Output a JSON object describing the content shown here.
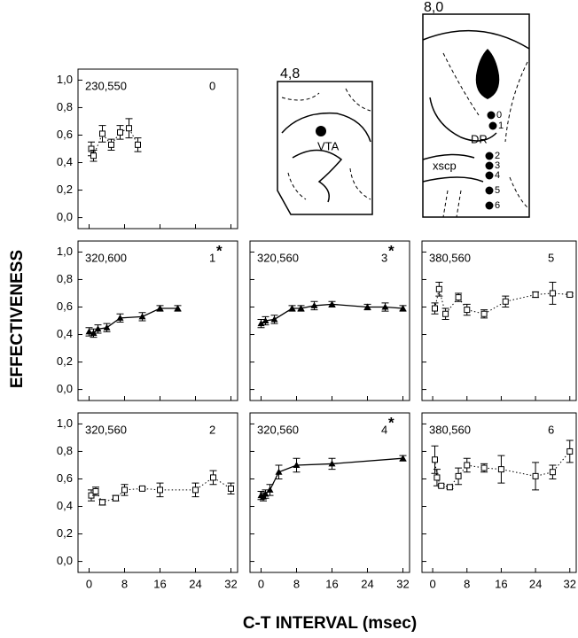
{
  "chart_data": [
    {
      "type": "scatter",
      "title": "230,550",
      "panel_label": "0",
      "x": [
        0.5,
        1,
        3,
        5,
        7,
        9,
        11
      ],
      "series": [
        {
          "color": "#000000",
          "marker": "square",
          "line": "dotted",
          "values": [
            0.5,
            0.45,
            0.61,
            0.53,
            0.62,
            0.65,
            0.53
          ],
          "errors": [
            0.05,
            0.04,
            0.06,
            0.04,
            0.05,
            0.07,
            0.05
          ]
        }
      ],
      "xlim": [
        -2.5,
        33.5
      ],
      "xticks": [
        0,
        8,
        16,
        24,
        32
      ],
      "xtick_labels": false,
      "ylim": [
        -0.08,
        1.08
      ],
      "yticks": [
        {
          "value": 0,
          "label": "0,0"
        },
        {
          "value": 0.2,
          "label": "0,2"
        },
        {
          "value": 0.4,
          "label": "0,4"
        },
        {
          "value": 0.6,
          "label": "0,6"
        },
        {
          "value": 0.8,
          "label": "0,8"
        },
        {
          "value": 1,
          "label": "1,0"
        }
      ],
      "ytick_labels": true
    },
    {
      "type": "scatter",
      "title": "320,600",
      "panel_label": "1",
      "significance": "*",
      "ylabel": "EFFECTIVENESS",
      "x": [
        0,
        1,
        2,
        4,
        7,
        12,
        16,
        20
      ],
      "series": [
        {
          "color": "#000000",
          "marker": "triangle",
          "line": "solid",
          "values": [
            0.42,
            0.41,
            0.44,
            0.45,
            0.52,
            0.53,
            0.59,
            0.59
          ],
          "errors": [
            0.03,
            0.03,
            0.03,
            0.03,
            0.03,
            0.03,
            0.02,
            0.02
          ]
        }
      ],
      "xlim": [
        -2.5,
        33.5
      ],
      "xticks": [
        0,
        8,
        16,
        24,
        32
      ],
      "xtick_labels": false,
      "ylim": [
        -0.08,
        1.08
      ],
      "yticks": [
        {
          "value": 0,
          "label": "0,0"
        },
        {
          "value": 0.2,
          "label": "0,2"
        },
        {
          "value": 0.4,
          "label": "0,4"
        },
        {
          "value": 0.6,
          "label": "0,6"
        },
        {
          "value": 0.8,
          "label": "0,8"
        },
        {
          "value": 1,
          "label": "1,0"
        }
      ],
      "ytick_labels": true
    },
    {
      "type": "scatter",
      "title": "320,560",
      "panel_label": "3",
      "significance": "*",
      "x": [
        0,
        1,
        3,
        7,
        9,
        12,
        16,
        24,
        28,
        32
      ],
      "series": [
        {
          "color": "#000000",
          "marker": "triangle",
          "line": "solid",
          "values": [
            0.48,
            0.5,
            0.51,
            0.59,
            0.59,
            0.61,
            0.62,
            0.6,
            0.6,
            0.59
          ],
          "errors": [
            0.03,
            0.03,
            0.03,
            0.02,
            0.02,
            0.03,
            0.02,
            0.02,
            0.03,
            0.02
          ]
        }
      ],
      "xlim": [
        -2.5,
        33.5
      ],
      "xticks": [
        0,
        8,
        16,
        24,
        32
      ],
      "xtick_labels": false,
      "ylim": [
        -0.08,
        1.08
      ],
      "yticks": [
        0,
        0.2,
        0.4,
        0.6,
        0.8,
        1
      ],
      "ytick_labels": false
    },
    {
      "type": "scatter",
      "title": "380,560",
      "panel_label": "5",
      "x": [
        0.5,
        1.5,
        3,
        6,
        8,
        12,
        17,
        24,
        28,
        32
      ],
      "series": [
        {
          "color": "#000000",
          "marker": "square",
          "line": "dotted",
          "values": [
            0.59,
            0.73,
            0.55,
            0.67,
            0.58,
            0.55,
            0.64,
            0.69,
            0.7,
            0.69
          ],
          "errors": [
            0.04,
            0.05,
            0.04,
            0.03,
            0.04,
            0.03,
            0.04,
            0.02,
            0.08,
            0.01
          ]
        }
      ],
      "xlim": [
        -2.5,
        33.5
      ],
      "xticks": [
        0,
        8,
        16,
        24,
        32
      ],
      "xtick_labels": false,
      "ylim": [
        -0.08,
        1.08
      ],
      "yticks": [
        0,
        0.2,
        0.4,
        0.6,
        0.8,
        1
      ],
      "ytick_labels": false
    },
    {
      "type": "scatter",
      "title": "320,560",
      "panel_label": "2",
      "x": [
        0.5,
        1.5,
        3,
        6,
        8,
        12,
        16,
        24,
        28,
        32
      ],
      "series": [
        {
          "color": "#000000",
          "marker": "square",
          "line": "dotted",
          "values": [
            0.48,
            0.51,
            0.43,
            0.46,
            0.52,
            0.53,
            0.52,
            0.52,
            0.61,
            0.53
          ],
          "errors": [
            0.04,
            0.03,
            0.02,
            0.02,
            0.04,
            0.01,
            0.05,
            0.05,
            0.05,
            0.04
          ]
        }
      ],
      "xlim": [
        -2.5,
        33.5
      ],
      "xticks": [
        0,
        8,
        16,
        24,
        32
      ],
      "xtick_labels": true,
      "ylim": [
        -0.08,
        1.08
      ],
      "yticks": [
        {
          "value": 0,
          "label": "0,0"
        },
        {
          "value": 0.2,
          "label": "0,2"
        },
        {
          "value": 0.4,
          "label": "0,4"
        },
        {
          "value": 0.6,
          "label": "0,6"
        },
        {
          "value": 0.8,
          "label": "0,8"
        },
        {
          "value": 1,
          "label": "1,0"
        }
      ],
      "ytick_labels": true
    },
    {
      "type": "scatter",
      "title": "320,560",
      "panel_label": "4",
      "significance": "*",
      "xlabel": "C-T INTERVAL (msec)",
      "x": [
        0,
        0.5,
        1,
        2,
        4,
        8,
        16,
        32
      ],
      "series": [
        {
          "color": "#000000",
          "marker": "triangle",
          "line": "solid",
          "values": [
            0.48,
            0.47,
            0.49,
            0.52,
            0.65,
            0.7,
            0.71,
            0.75
          ],
          "errors": [
            0.03,
            0.03,
            0.03,
            0.04,
            0.05,
            0.05,
            0.04,
            0.02
          ]
        }
      ],
      "xlim": [
        -2.5,
        33.5
      ],
      "xticks": [
        0,
        8,
        16,
        24,
        32
      ],
      "xtick_labels": true,
      "ylim": [
        -0.08,
        1.08
      ],
      "yticks": [
        0,
        0.2,
        0.4,
        0.6,
        0.8,
        1
      ],
      "ytick_labels": false
    },
    {
      "type": "scatter",
      "title": "380,560",
      "panel_label": "6",
      "x": [
        0.5,
        1,
        2,
        4,
        6,
        8,
        12,
        16,
        24,
        28,
        32
      ],
      "series": [
        {
          "color": "#000000",
          "marker": "square",
          "line": "dotted",
          "values": [
            0.74,
            0.61,
            0.55,
            0.54,
            0.62,
            0.7,
            0.68,
            0.67,
            0.62,
            0.65,
            0.8
          ],
          "errors": [
            0.1,
            0.06,
            0.01,
            0.01,
            0.06,
            0.05,
            0.03,
            0.1,
            0.1,
            0.05,
            0.08
          ]
        }
      ],
      "xlim": [
        -2.5,
        33.5
      ],
      "xticks": [
        0,
        8,
        16,
        24,
        32
      ],
      "xtick_labels": true,
      "ylim": [
        -0.08,
        1.08
      ],
      "yticks": [
        0,
        0.2,
        0.4,
        0.6,
        0.8,
        1
      ],
      "ytick_labels": false
    }
  ],
  "diagrams": [
    {
      "label": "4,8",
      "structures": [
        "VTA"
      ]
    },
    {
      "label": "8,0",
      "structures": [
        "DR",
        "xscp"
      ],
      "sites": [
        "0",
        "1",
        "2",
        "3",
        "4",
        "5",
        "6"
      ]
    }
  ]
}
